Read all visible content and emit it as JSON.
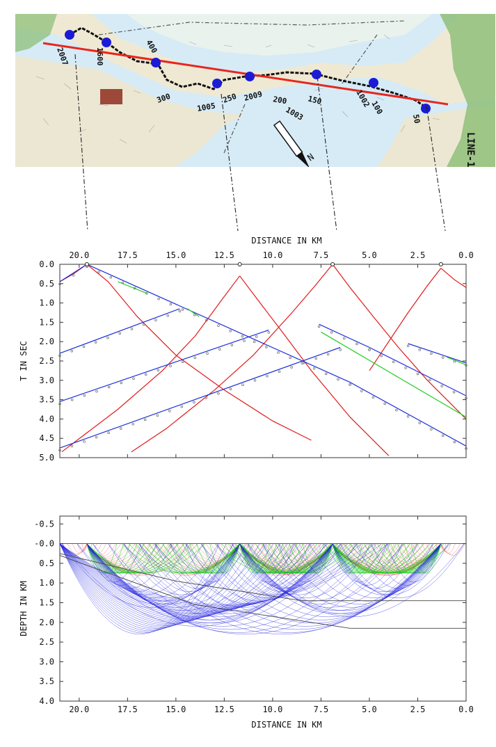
{
  "map": {
    "line_label": "LINE-1",
    "km_labels": [
      "2007",
      "1600",
      "400",
      "300",
      "1005",
      "250",
      "2009",
      "200",
      "1003",
      "150",
      "1002",
      "100",
      "50"
    ],
    "shots": 8,
    "north_label": "N",
    "colors": {
      "profile_line": "#e8261e",
      "shot": "#1b1bd6",
      "sea": "#d6ebf6",
      "land": "#efe9d4",
      "hill": "#8fbf7a"
    }
  },
  "chart_data": [
    {
      "type": "line",
      "title": "",
      "xlabel": "DISTANCE IN KM",
      "ylabel": "T IN SEC",
      "xlim": [
        21.0,
        0.0
      ],
      "ylim": [
        5.0,
        0.0
      ],
      "xticks": [
        "20.0",
        "17.5",
        "15.0",
        "12.5",
        "10.0",
        "7.5",
        "5.0",
        "2.5",
        "0.0"
      ],
      "yticks": [
        "0.0",
        "0.5",
        "1.0",
        "1.5",
        "2.0",
        "2.5",
        "3.0",
        "3.5",
        "4.0",
        "4.5",
        "5.0"
      ],
      "shot_positions_km": [
        19.6,
        11.7,
        6.9,
        1.3
      ],
      "series": [
        {
          "color": "#e01a1a",
          "points": [
            [
              19.6,
              0.0
            ],
            [
              18.5,
              0.45
            ],
            [
              17.0,
              1.35
            ],
            [
              15.0,
              2.35
            ],
            [
              12.5,
              3.25
            ],
            [
              10.0,
              4.05
            ],
            [
              8.0,
              4.55
            ]
          ]
        },
        {
          "color": "#e01a1a",
          "points": [
            [
              19.6,
              0.0
            ],
            [
              20.3,
              0.25
            ],
            [
              21.0,
              0.45
            ]
          ]
        },
        {
          "color": "#e01a1a",
          "points": [
            [
              11.7,
              0.3
            ],
            [
              12.6,
              0.9
            ],
            [
              14.0,
              1.85
            ],
            [
              15.7,
              2.75
            ],
            [
              18.0,
              3.75
            ],
            [
              20.9,
              4.85
            ]
          ]
        },
        {
          "color": "#e01a1a",
          "points": [
            [
              11.7,
              0.3
            ],
            [
              10.8,
              0.9
            ],
            [
              9.5,
              1.75
            ],
            [
              8.0,
              2.75
            ],
            [
              6.0,
              3.95
            ],
            [
              4.0,
              4.95
            ]
          ]
        },
        {
          "color": "#e01a1a",
          "points": [
            [
              6.9,
              0.0
            ],
            [
              7.8,
              0.55
            ],
            [
              9.0,
              1.25
            ],
            [
              11.0,
              2.35
            ],
            [
              13.0,
              3.25
            ],
            [
              15.5,
              4.25
            ],
            [
              17.3,
              4.85
            ]
          ]
        },
        {
          "color": "#e01a1a",
          "points": [
            [
              6.9,
              0.0
            ],
            [
              6.0,
              0.6
            ],
            [
              4.8,
              1.35
            ],
            [
              3.5,
              2.15
            ],
            [
              2.0,
              3.0
            ],
            [
              0.0,
              4.0
            ]
          ]
        },
        {
          "color": "#e01a1a",
          "points": [
            [
              1.3,
              0.1
            ],
            [
              0.6,
              0.4
            ],
            [
              0.0,
              0.6
            ]
          ]
        },
        {
          "color": "#e01a1a",
          "points": [
            [
              1.3,
              0.1
            ],
            [
              2.0,
              0.55
            ],
            [
              3.0,
              1.25
            ],
            [
              4.2,
              2.15
            ],
            [
              5.0,
              2.75
            ]
          ]
        },
        {
          "color": "#1c2fd8",
          "points": [
            [
              19.6,
              0.0
            ],
            [
              6.0,
              3.05
            ],
            [
              0.0,
              4.7
            ]
          ]
        },
        {
          "color": "#1c2fd8",
          "points": [
            [
              21.0,
              0.45
            ],
            [
              19.6,
              0.0
            ]
          ]
        },
        {
          "color": "#1c2fd8",
          "points": [
            [
              21.0,
              2.3
            ],
            [
              14.8,
              1.15
            ]
          ]
        },
        {
          "color": "#1c2fd8",
          "points": [
            [
              21.0,
              3.55
            ],
            [
              10.2,
              1.7
            ]
          ]
        },
        {
          "color": "#1c2fd8",
          "points": [
            [
              21.0,
              4.75
            ],
            [
              6.5,
              2.15
            ]
          ]
        },
        {
          "color": "#1c2fd8",
          "points": [
            [
              7.6,
              1.55
            ],
            [
              5.0,
              2.15
            ],
            [
              0.0,
              3.4
            ]
          ]
        },
        {
          "color": "#1c2fd8",
          "points": [
            [
              3.0,
              2.05
            ],
            [
              0.0,
              2.55
            ]
          ]
        },
        {
          "color": "#1fcc1f",
          "points": [
            [
              18.0,
              0.45
            ],
            [
              16.5,
              0.75
            ]
          ]
        },
        {
          "color": "#1fcc1f",
          "points": [
            [
              14.4,
              1.15
            ],
            [
              13.8,
              1.35
            ]
          ]
        },
        {
          "color": "#1fcc1f",
          "points": [
            [
              7.5,
              1.75
            ],
            [
              0.0,
              3.95
            ]
          ]
        },
        {
          "color": "#1fcc1f",
          "points": [
            [
              1.0,
              2.4
            ],
            [
              0.0,
              2.6
            ]
          ]
        }
      ]
    },
    {
      "type": "line",
      "title": "",
      "xlabel": "DISTANCE IN KM",
      "ylabel": "DEPTH IN KM",
      "xlim": [
        21.0,
        0.0
      ],
      "ylim": [
        4.0,
        -0.7
      ],
      "xticks": [
        "20.0",
        "17.5",
        "15.0",
        "12.5",
        "10.0",
        "7.5",
        "5.0",
        "2.5",
        "0.0"
      ],
      "yticks": [
        "-0.5",
        "-0.0",
        "0.5",
        "1.0",
        "1.5",
        "2.0",
        "2.5",
        "3.0",
        "3.5",
        "4.0"
      ],
      "interfaces": [
        {
          "points": [
            [
              21.0,
              0.0
            ],
            [
              0.0,
              0.0
            ]
          ]
        },
        {
          "points": [
            [
              21.0,
              0.25
            ],
            [
              15.0,
              0.95
            ],
            [
              8.5,
              1.45
            ],
            [
              0.0,
              1.45
            ]
          ]
        },
        {
          "points": [
            [
              21.0,
              0.3
            ],
            [
              14.0,
              1.55
            ],
            [
              6.0,
              2.15
            ],
            [
              0.0,
              2.15
            ]
          ]
        }
      ],
      "shot_positions_km": [
        19.6,
        11.7,
        6.9,
        1.3
      ],
      "ray_colors": {
        "refracted": "#2424e0",
        "reflected": "#19d419",
        "direct": "#e83030"
      }
    }
  ]
}
